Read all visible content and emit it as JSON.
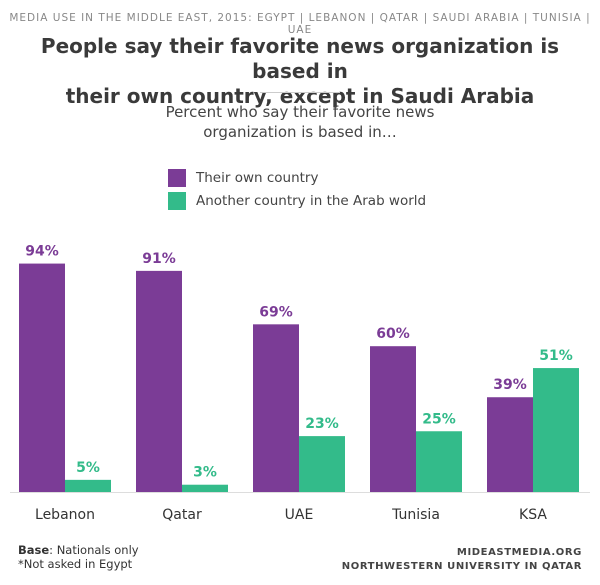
{
  "header": {
    "kicker": "MEDIA USE IN THE MIDDLE EAST, 2015: EGYPT | LEBANON | QATAR | SAUDI ARABIA | TUNISIA | UAE",
    "title_line1": "People say their favorite news organization is based in",
    "title_line2": "their own country, except in Saudi Arabia",
    "subtitle_line1": "Percent who say their favorite news",
    "subtitle_line2": "organization is based in…"
  },
  "colors": {
    "own_country": "#7b3c96",
    "arab_world": "#33bb8a"
  },
  "chart_data": {
    "type": "bar",
    "categories": [
      "Lebanon",
      "Qatar",
      "UAE",
      "Tunisia",
      "KSA"
    ],
    "series": [
      {
        "name": "Their own country",
        "values": [
          94,
          91,
          69,
          60,
          39
        ],
        "labels": [
          "94%",
          "91%",
          "69%",
          "60%",
          "39%"
        ]
      },
      {
        "name": "Another country in the Arab world",
        "values": [
          5,
          3,
          23,
          25,
          51
        ],
        "labels": [
          "5%",
          "3%",
          "23%",
          "25%",
          "51%"
        ]
      }
    ],
    "ylim": [
      0,
      100
    ]
  },
  "footer": {
    "base_label": "Base",
    "base_text": ": Nationals only",
    "note": "*Not asked in Egypt",
    "source_line1": "MIDEASTMEDIA.ORG",
    "source_line2": "NORTHWESTERN UNIVERSITY IN QATAR"
  }
}
